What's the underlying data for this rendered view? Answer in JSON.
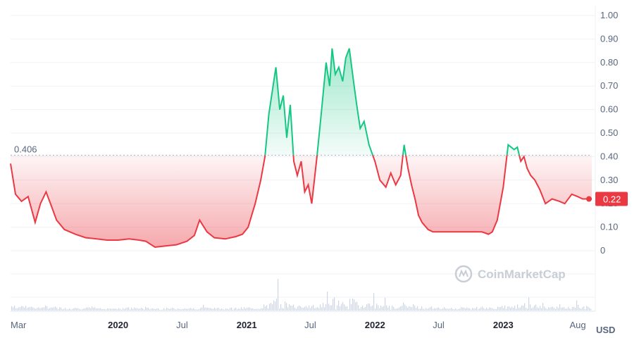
{
  "chart_data": {
    "type": "area",
    "currency": "USD",
    "watermark": "CoinMarketCap",
    "y_ticks": [
      "1.00",
      "0.90",
      "0.80",
      "0.70",
      "0.60",
      "0.50",
      "0.40",
      "0.30",
      "0.20",
      "0.10",
      "0"
    ],
    "ylim": [
      0,
      1.0
    ],
    "x_ticks": [
      {
        "label": "Mar",
        "x": "2019-03-01",
        "bold": false
      },
      {
        "label": "2020",
        "x": "2020-01-01",
        "bold": true
      },
      {
        "label": "Jul",
        "x": "2020-07-01",
        "bold": false
      },
      {
        "label": "2021",
        "x": "2021-01-01",
        "bold": true
      },
      {
        "label": "Jul",
        "x": "2021-07-01",
        "bold": false
      },
      {
        "label": "2022",
        "x": "2022-01-01",
        "bold": true
      },
      {
        "label": "Jul",
        "x": "2022-07-01",
        "bold": false
      },
      {
        "label": "2023",
        "x": "2023-01-01",
        "bold": true
      },
      {
        "label": "Aug",
        "x": "2023-08-01",
        "bold": false
      }
    ],
    "reference": {
      "label": "0.406",
      "value": 0.406
    },
    "current": {
      "label": "0.22",
      "value": 0.22
    },
    "colors": {
      "up": "#16c784",
      "down": "#ea3943",
      "grid": "#eff2f5",
      "ref": "#a6b0c3",
      "volume": "#cfd6e4"
    },
    "series": [
      {
        "x": [
          "2019-03-01",
          "2019-03-15",
          "2019-04-01",
          "2019-04-20",
          "2019-05-10",
          "2019-05-25",
          "2019-06-10",
          "2019-06-25",
          "2019-07-10",
          "2019-08-01",
          "2019-09-01",
          "2019-10-01",
          "2019-11-01",
          "2019-12-01",
          "2020-01-01",
          "2020-02-01",
          "2020-03-01",
          "2020-03-20",
          "2020-04-15",
          "2020-05-15",
          "2020-06-15",
          "2020-07-15",
          "2020-08-05",
          "2020-08-20",
          "2020-09-10",
          "2020-10-01",
          "2020-11-01",
          "2020-12-01",
          "2020-12-20",
          "2021-01-05",
          "2021-01-25",
          "2021-02-10",
          "2021-02-22",
          "2021-03-05",
          "2021-03-15",
          "2021-03-25",
          "2021-04-05",
          "2021-04-15",
          "2021-04-25",
          "2021-05-05",
          "2021-05-15",
          "2021-05-25",
          "2021-06-05",
          "2021-06-15",
          "2021-06-25",
          "2021-07-05",
          "2021-07-20",
          "2021-08-01",
          "2021-08-15",
          "2021-08-25",
          "2021-09-01",
          "2021-09-10",
          "2021-09-20",
          "2021-10-01",
          "2021-10-10",
          "2021-10-20",
          "2021-11-01",
          "2021-11-10",
          "2021-11-20",
          "2021-12-01",
          "2021-12-15",
          "2022-01-01",
          "2022-01-15",
          "2022-02-01",
          "2022-02-15",
          "2022-03-01",
          "2022-03-15",
          "2022-03-25",
          "2022-04-05",
          "2022-04-15",
          "2022-04-25",
          "2022-05-05",
          "2022-05-15",
          "2022-06-01",
          "2022-06-15",
          "2022-07-01",
          "2022-08-01",
          "2022-09-01",
          "2022-10-01",
          "2022-11-01",
          "2022-11-20",
          "2022-12-01",
          "2022-12-15",
          "2023-01-01",
          "2023-01-15",
          "2023-02-01",
          "2023-02-10",
          "2023-02-20",
          "2023-03-01",
          "2023-03-10",
          "2023-03-20",
          "2023-04-01",
          "2023-04-15",
          "2023-05-01",
          "2023-05-20",
          "2023-06-10",
          "2023-06-25",
          "2023-07-15",
          "2023-08-01",
          "2023-08-15",
          "2023-09-01",
          "2023-09-10"
        ],
        "y": [
          0.37,
          0.24,
          0.21,
          0.23,
          0.12,
          0.2,
          0.25,
          0.19,
          0.13,
          0.09,
          0.07,
          0.055,
          0.05,
          0.045,
          0.045,
          0.05,
          0.045,
          0.04,
          0.015,
          0.02,
          0.025,
          0.04,
          0.065,
          0.13,
          0.08,
          0.055,
          0.05,
          0.06,
          0.07,
          0.1,
          0.2,
          0.3,
          0.4,
          0.58,
          0.68,
          0.78,
          0.6,
          0.66,
          0.48,
          0.62,
          0.38,
          0.32,
          0.38,
          0.25,
          0.28,
          0.2,
          0.4,
          0.58,
          0.8,
          0.7,
          0.86,
          0.75,
          0.78,
          0.72,
          0.82,
          0.86,
          0.72,
          0.62,
          0.52,
          0.55,
          0.45,
          0.38,
          0.3,
          0.27,
          0.33,
          0.28,
          0.32,
          0.45,
          0.35,
          0.28,
          0.22,
          0.15,
          0.12,
          0.09,
          0.08,
          0.08,
          0.08,
          0.08,
          0.08,
          0.08,
          0.07,
          0.08,
          0.13,
          0.27,
          0.45,
          0.43,
          0.44,
          0.38,
          0.4,
          0.35,
          0.32,
          0.3,
          0.26,
          0.2,
          0.22,
          0.21,
          0.2,
          0.24,
          0.23,
          0.22,
          0.22,
          0.22
        ]
      }
    ]
  }
}
